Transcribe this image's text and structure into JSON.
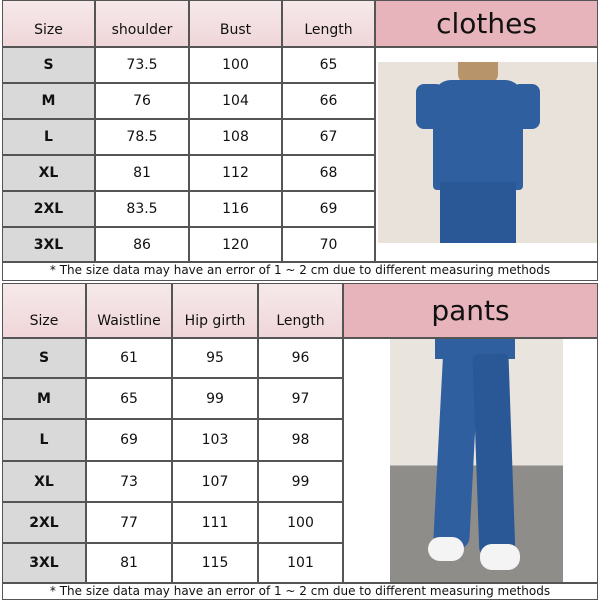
{
  "clothes": {
    "title": "clothes",
    "headers": [
      "Size",
      "shoulder",
      "Bust",
      "Length"
    ],
    "rows": [
      [
        "S",
        "73.5",
        "100",
        "65"
      ],
      [
        "M",
        "76",
        "104",
        "66"
      ],
      [
        "L",
        "78.5",
        "108",
        "67"
      ],
      [
        "XL",
        "81",
        "112",
        "68"
      ],
      [
        "2XL",
        "83.5",
        "116",
        "69"
      ],
      [
        "3XL",
        "86",
        "120",
        "70"
      ]
    ],
    "note": "* The size data may have an error of 1 ~ 2 cm due to different measuring methods"
  },
  "pants": {
    "title": "pants",
    "headers": [
      "Size",
      "Waistline",
      "Hip girth",
      "Length"
    ],
    "rows": [
      [
        "S",
        "61",
        "95",
        "96"
      ],
      [
        "M",
        "65",
        "99",
        "97"
      ],
      [
        "L",
        "69",
        "103",
        "98"
      ],
      [
        "XL",
        "73",
        "107",
        "99"
      ],
      [
        "2XL",
        "77",
        "111",
        "100"
      ],
      [
        "3XL",
        "81",
        "115",
        "101"
      ]
    ],
    "note": "* The size data may have an error of 1 ~ 2 cm due to different measuring methods"
  },
  "colors": {
    "header": "#efd6d9",
    "title": "#e8b4bb",
    "size_column": "#d9d9d9",
    "garment": "#2f5f9e"
  }
}
